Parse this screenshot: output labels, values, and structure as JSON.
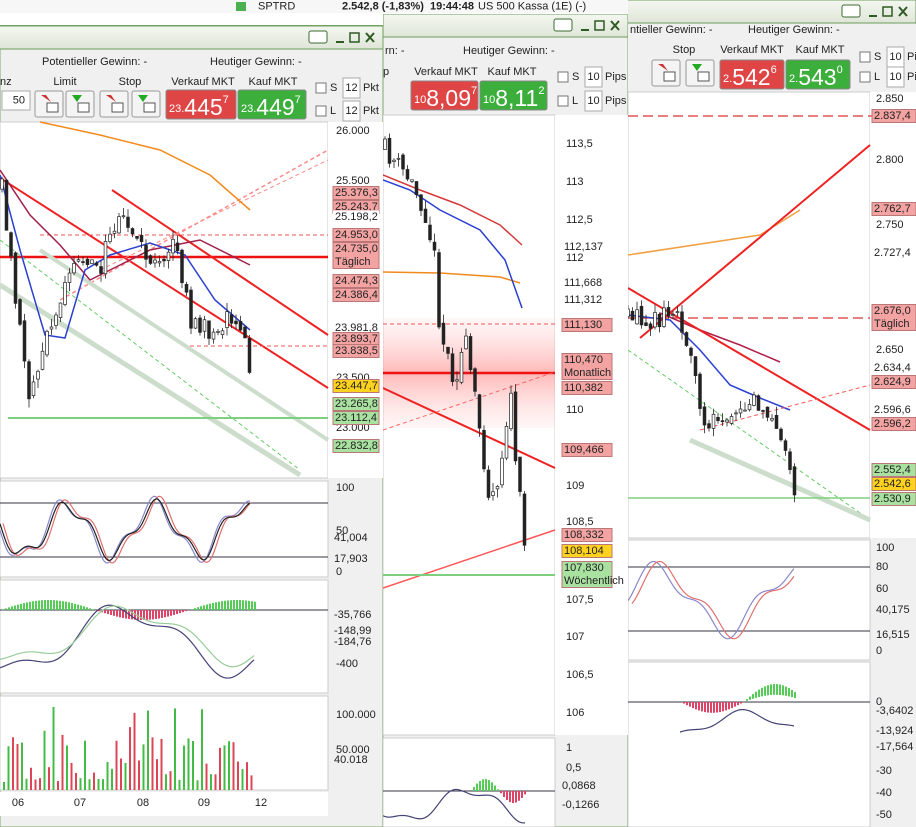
{
  "topbar": {
    "symbol": "SPTRD",
    "quote": "2.542,8 (-1,83%)",
    "time": "19:44:48",
    "instrument": "US 500 Kassa (1E) (-)"
  },
  "windows": [
    {
      "potential": "Potentieller Gewinn: -",
      "today": "Heutiger Gewinn: -",
      "labels": [
        "nz",
        "Limit",
        "Stop",
        "Verkauf MKT",
        "Kauf MKT"
      ],
      "quantity": "50",
      "sell": {
        "prefix": "23.",
        "big": "445",
        "sup": "7"
      },
      "buy": {
        "prefix": "23.",
        "big": "449",
        "sup": "7"
      },
      "s_label": "S",
      "s_value": "12",
      "s_unit": "Pkt",
      "l_label": "L",
      "l_value": "12",
      "l_unit": "Pkt",
      "price_axis": [
        "26.000",
        "25.500",
        "23.500",
        "23.000"
      ],
      "price_tags": [
        {
          "text": "25.376,3"
        },
        {
          "text": "25.243,7"
        },
        {
          "text": "25.198,2"
        },
        {
          "text": "24.953,0"
        },
        {
          "text": "24.735,0",
          "note": "Täglich"
        },
        {
          "text": "24.474,3"
        },
        {
          "text": "24.386,4"
        },
        {
          "text": "23.981,8"
        },
        {
          "text": "23.893,7"
        },
        {
          "text": "23.838,5"
        },
        {
          "text": "23.447,7"
        },
        {
          "text": "23.265,8"
        },
        {
          "text": "23.112,4"
        },
        {
          "text": "22.832,8"
        }
      ],
      "osc_axis": [
        "100",
        "50",
        "0"
      ],
      "osc_tags": [
        "41,004",
        "17,903"
      ],
      "macd_axis": [
        "-400"
      ],
      "macd_tags": [
        "-35,766",
        "-148,99",
        "-184,76"
      ],
      "vol_axis": [
        "100.000",
        "50.000"
      ],
      "vol_tags": [
        "40.018"
      ],
      "x_axis": [
        "06",
        "07",
        "08",
        "09",
        "12"
      ]
    },
    {
      "potential": "rn: -",
      "today": "Heutiger Gewinn: -",
      "labels": [
        "p",
        "Verkauf MKT",
        "Kauf MKT"
      ],
      "sell": {
        "prefix": "10",
        "big": "8,09",
        "sup": "7"
      },
      "buy": {
        "prefix": "10",
        "big": "8,11",
        "sup": "2"
      },
      "s_label": "S",
      "s_value": "10",
      "s_unit": "Pips",
      "l_label": "L",
      "l_value": "10",
      "l_unit": "Pips",
      "price_axis": [
        "113,5",
        "113",
        "112,5",
        "112",
        "110",
        "109",
        "108,5",
        "107,5",
        "107",
        "106,5",
        "106"
      ],
      "price_tags": [
        {
          "text": "112,137"
        },
        {
          "text": "111,668"
        },
        {
          "text": "111,312"
        },
        {
          "text": "111,130"
        },
        {
          "text": "110,470",
          "note": "Monatlich"
        },
        {
          "text": "110,382"
        },
        {
          "text": "109,466"
        },
        {
          "text": "108,332"
        },
        {
          "text": "108,104"
        },
        {
          "text": "107,830",
          "note": "Wöchentlich"
        }
      ],
      "osc_axis": [
        "1",
        "0,5"
      ],
      "osc_tags": [
        "0,0868",
        "-0,1266"
      ]
    },
    {
      "potential": "ntieller Gewinn: -",
      "today": "Heutiger Gewinn: -",
      "labels": [
        "Stop",
        "Verkauf MKT",
        "Kauf MKT"
      ],
      "sell": {
        "prefix": "2.",
        "big": "542",
        "sup": "6"
      },
      "buy": {
        "prefix": "2.",
        "big": "543",
        "sup": "0"
      },
      "s_label": "S",
      "s_value": "10",
      "s_unit": "Pips",
      "l_label": "L",
      "l_value": "10",
      "l_unit": "Pips",
      "price_axis": [
        "2.850",
        "2.800",
        "2.750",
        "2.650"
      ],
      "price_tags": [
        {
          "text": "2.837,4"
        },
        {
          "text": "2.762,7"
        },
        {
          "text": "2.727,4"
        },
        {
          "text": "2.676,0",
          "note": "Täglich"
        },
        {
          "text": "2.634,4"
        },
        {
          "text": "2.624,9"
        },
        {
          "text": "2.596,6"
        },
        {
          "text": "2.596,2"
        },
        {
          "text": "2.552,4"
        },
        {
          "text": "2.542,6"
        },
        {
          "text": "2.530,9"
        }
      ],
      "osc_axis": [
        "100",
        "80",
        "60",
        "0"
      ],
      "osc_tags": [
        "40,175",
        "16,515"
      ],
      "macd_axis": [
        "0",
        "-30",
        "-40",
        "-50"
      ],
      "macd_tags": [
        "-3,6402",
        "-13,924",
        "-17,564"
      ]
    }
  ]
}
